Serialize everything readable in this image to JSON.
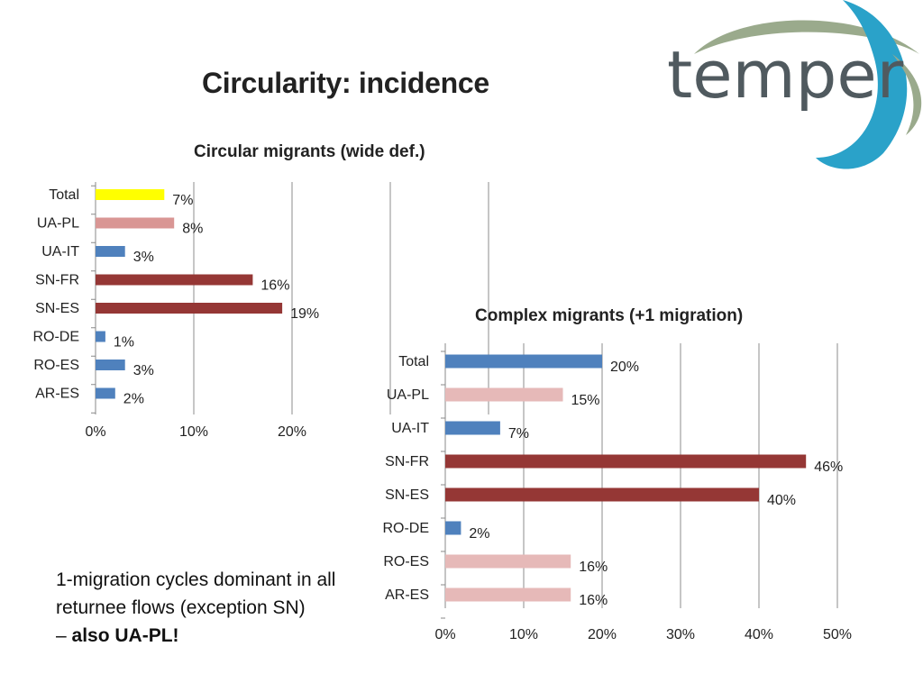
{
  "slide": {
    "title": "Circularity: incidence",
    "logo_text": "temper",
    "note_main": "1-migration cycles dominant in all returnee flows (exception SN)",
    "note_prefix": "– ",
    "note_bold": "also UA-PL!"
  },
  "chart_data": [
    {
      "type": "bar",
      "orientation": "horizontal",
      "title": "Circular migrants (wide def.)",
      "categories": [
        "Total",
        "UA-PL",
        "UA-IT",
        "SN-FR",
        "SN-ES",
        "RO-DE",
        "RO-ES",
        "AR-ES"
      ],
      "values": [
        7,
        8,
        3,
        16,
        19,
        1,
        3,
        2
      ],
      "data_labels": [
        "7%",
        "8%",
        "3%",
        "16%",
        "19%",
        "1%",
        "3%",
        "2%"
      ],
      "bar_colors": [
        "#ffff00",
        "#d99694",
        "#4f81bd",
        "#953735",
        "#953735",
        "#4f81bd",
        "#4f81bd",
        "#4f81bd"
      ],
      "xlim": [
        0,
        50
      ],
      "xticks": [
        "0%",
        "10%",
        "20%"
      ],
      "grid": true
    },
    {
      "type": "bar",
      "orientation": "horizontal",
      "title": "Complex migrants (+1 migration)",
      "categories": [
        "Total",
        "UA-PL",
        "UA-IT",
        "SN-FR",
        "SN-ES",
        "RO-DE",
        "RO-ES",
        "AR-ES"
      ],
      "values": [
        20,
        15,
        7,
        46,
        40,
        2,
        16,
        16
      ],
      "data_labels": [
        "20%",
        "15%",
        "7%",
        "46%",
        "40%",
        "2%",
        "16%",
        "16%"
      ],
      "bar_colors": [
        "#4f81bd",
        "#e6b9b8",
        "#4f81bd",
        "#953735",
        "#953735",
        "#4f81bd",
        "#e6b9b8",
        "#e6b9b8"
      ],
      "xlim": [
        0,
        50
      ],
      "xticks": [
        "0%",
        "10%",
        "20%",
        "30%",
        "40%",
        "50%"
      ],
      "grid": true
    }
  ]
}
